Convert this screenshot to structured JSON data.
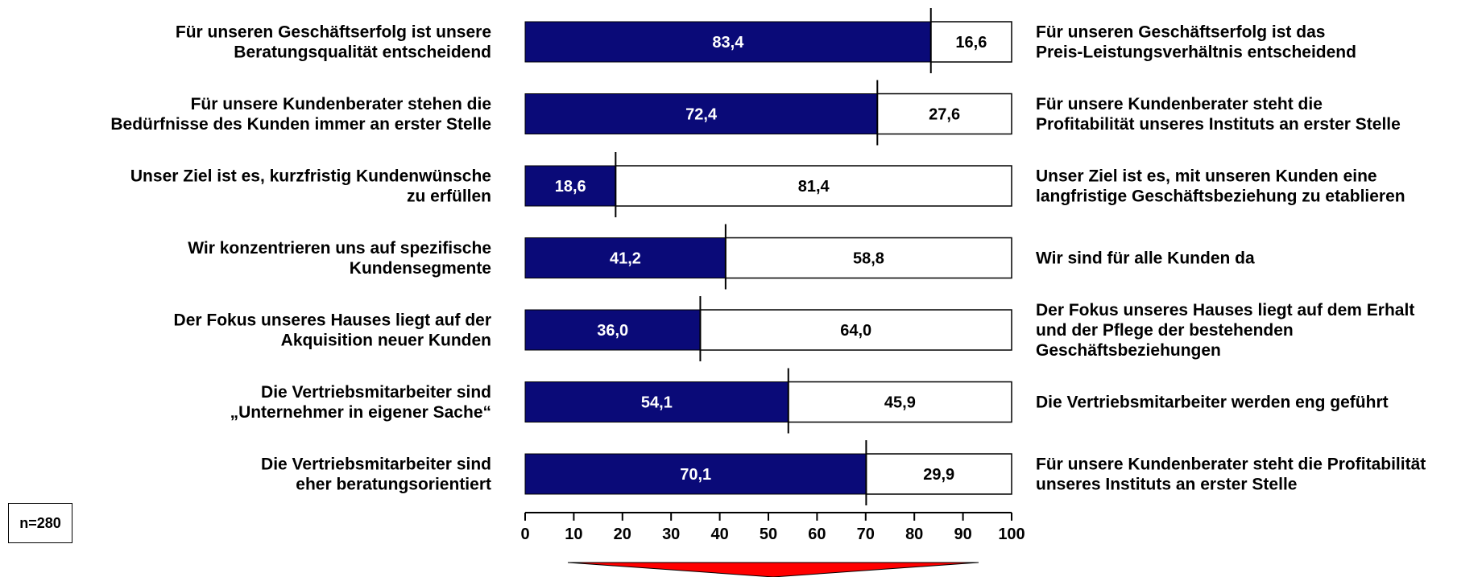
{
  "chart_data": {
    "type": "bar",
    "orientation": "horizontal",
    "stacked": true,
    "xlim": [
      0,
      100
    ],
    "xticks": [
      "0",
      "10",
      "20",
      "30",
      "40",
      "50",
      "60",
      "70",
      "80",
      "90",
      "100"
    ],
    "colors": {
      "left": "#0a0a78",
      "right": "#ffffff"
    },
    "rows": [
      {
        "left_label": [
          "Für unseren Geschäftserfolg ist unsere",
          "Beratungsqualität entscheidend"
        ],
        "right_label": [
          "Für unseren Geschäftserfolg ist das",
          "Preis-Leistungsverhältnis entscheidend"
        ],
        "left_value": 83.4,
        "right_value": 16.6,
        "left_text": "83,4",
        "right_text": "16,6"
      },
      {
        "left_label": [
          "Für unsere Kundenberater stehen die",
          "Bedürfnisse des Kunden  immer an erster Stelle"
        ],
        "right_label": [
          "Für unsere Kundenberater steht die",
          "Profitabilität unseres Instituts an erster Stelle"
        ],
        "left_value": 72.4,
        "right_value": 27.6,
        "left_text": "72,4",
        "right_text": "27,6"
      },
      {
        "left_label": [
          "Unser Ziel ist es, kurzfristig Kundenwünsche",
          "zu erfüllen"
        ],
        "right_label": [
          "Unser Ziel ist es, mit unseren Kunden eine",
          "langfristige Geschäftsbeziehung zu etablieren"
        ],
        "left_value": 18.6,
        "right_value": 81.4,
        "left_text": "18,6",
        "right_text": "81,4"
      },
      {
        "left_label": [
          "Wir konzentrieren uns auf spezifische",
          "Kundensegmente"
        ],
        "right_label": [
          "Wir sind für alle Kunden da"
        ],
        "left_value": 41.2,
        "right_value": 58.8,
        "left_text": "41,2",
        "right_text": "58,8"
      },
      {
        "left_label": [
          "Der Fokus unseres Hauses  liegt auf der",
          "Akquisition neuer Kunden"
        ],
        "right_label": [
          "Der Fokus unseres Hauses liegt auf dem Erhalt",
          "und der Pflege der bestehenden",
          "Geschäftsbeziehungen"
        ],
        "left_value": 36.0,
        "right_value": 64.0,
        "left_text": "36,0",
        "right_text": "64,0"
      },
      {
        "left_label": [
          "Die Vertriebsmitarbeiter sind",
          "„Unternehmer in eigener Sache“"
        ],
        "right_label": [
          "Die Vertriebsmitarbeiter werden eng geführt"
        ],
        "left_value": 54.1,
        "right_value": 45.9,
        "left_text": "54,1",
        "right_text": "45,9"
      },
      {
        "left_label": [
          "Die Vertriebsmitarbeiter sind",
          "eher beratungsorientiert"
        ],
        "right_label": [
          "Für unsere Kundenberater steht die Profitabilität",
          "unseres Instituts an erster Stelle"
        ],
        "left_value": 70.1,
        "right_value": 29.9,
        "left_text": "70,1",
        "right_text": "29,9"
      }
    ],
    "arrow_color": "#ff0000"
  },
  "note": {
    "sample_size": "n=280"
  }
}
